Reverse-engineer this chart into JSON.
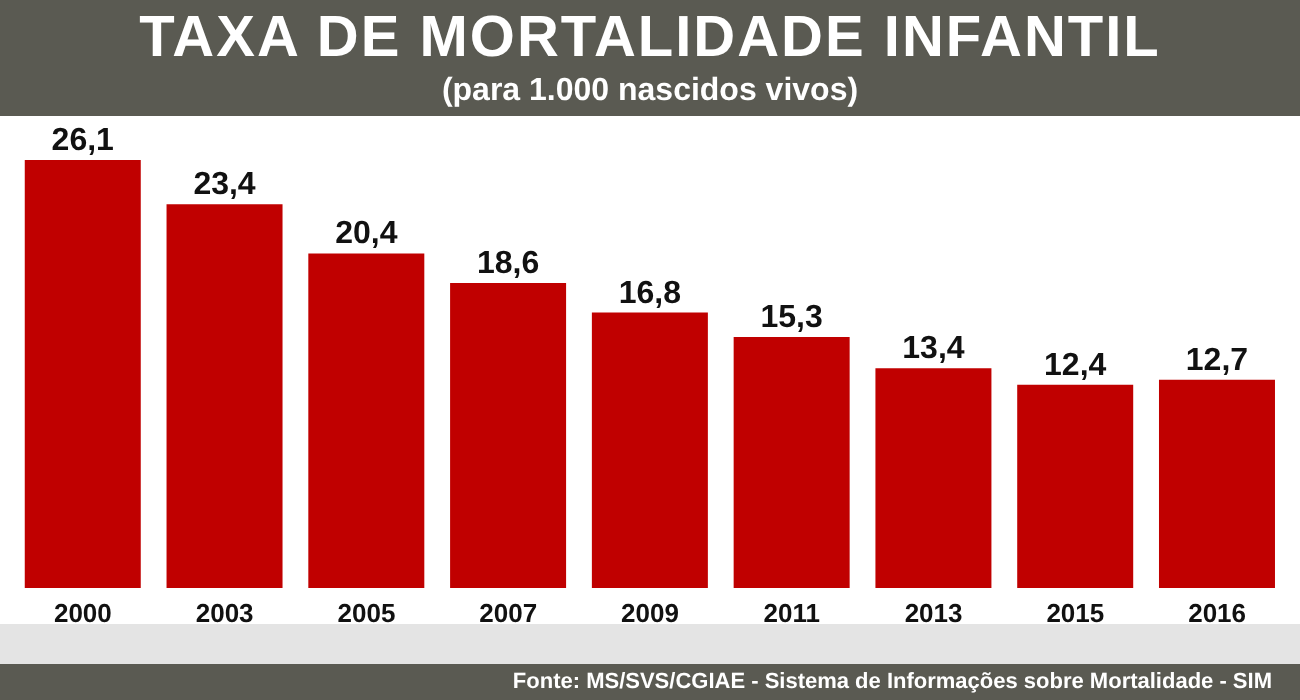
{
  "chart_data": {
    "type": "bar",
    "title": "TAXA DE MORTALIDADE INFANTIL",
    "subtitle": "(para 1.000 nascidos vivos)",
    "categories": [
      "2000",
      "2003",
      "2005",
      "2007",
      "2009",
      "2011",
      "2013",
      "2015",
      "2016"
    ],
    "values": [
      26.1,
      23.4,
      20.4,
      18.6,
      16.8,
      15.3,
      13.4,
      12.4,
      12.7
    ],
    "value_labels": [
      "26,1",
      "23,4",
      "20,4",
      "18,6",
      "16,8",
      "15,3",
      "13,4",
      "12,4",
      "12,7"
    ],
    "color": "#c00000",
    "annotations": [
      "Fonte: MS/SVS/CGIAE - Sistema de Informações sobre Mortalidade - SIM"
    ]
  }
}
